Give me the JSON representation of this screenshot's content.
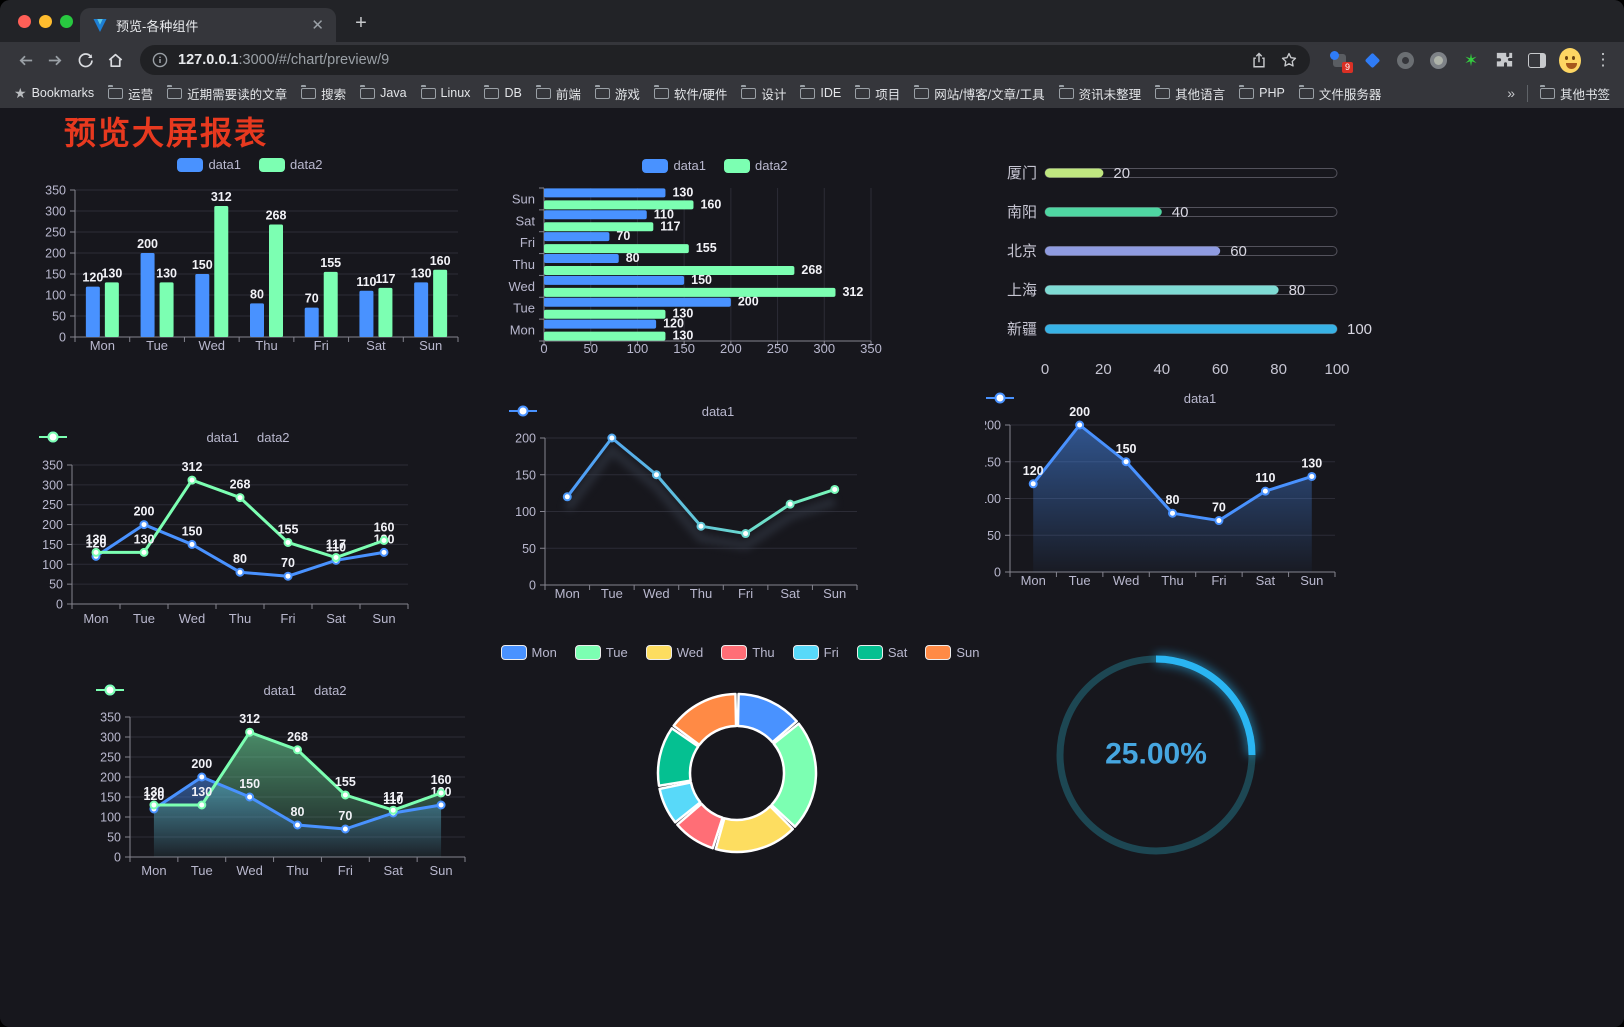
{
  "browser": {
    "tab_title": "预览-各种组件",
    "url_host": "127.0.0.1",
    "url_path": ":3000/#/chart/preview/9",
    "new_tab_label": "+",
    "bookmarks_label": "Bookmarks",
    "bookmark_folders": [
      "运营",
      "近期需要读的文章",
      "搜索",
      "Java",
      "Linux",
      "DB",
      "前端",
      "游戏",
      "软件/硬件",
      "设计",
      "IDE",
      "项目",
      "网站/博客/文章/工具",
      "资讯未整理",
      "其他语言",
      "PHP",
      "文件服务器"
    ],
    "bookmarks_overflow": "»",
    "other_bookmarks": "其他书签",
    "extension_badge": "9"
  },
  "page": {
    "title": "预览大屏报表",
    "title_color": "#e8391f"
  },
  "chart_data": [
    {
      "type": "bar",
      "title": "",
      "categories": [
        "Mon",
        "Tue",
        "Wed",
        "Thu",
        "Fri",
        "Sat",
        "Sun"
      ],
      "series": [
        {
          "name": "data1",
          "color": "#4992ff",
          "values": [
            120,
            200,
            150,
            80,
            70,
            110,
            130
          ]
        },
        {
          "name": "data2",
          "color": "#7cffb2",
          "values": [
            130,
            130,
            312,
            268,
            155,
            117,
            160
          ]
        }
      ],
      "ylim": [
        0,
        350
      ],
      "ystep": 50,
      "show_labels": true,
      "legend_position": "top",
      "grid": true
    },
    {
      "type": "hbar",
      "categories": [
        "Mon",
        "Tue",
        "Wed",
        "Thu",
        "Fri",
        "Sat",
        "Sun"
      ],
      "series": [
        {
          "name": "data1",
          "color": "#4992ff",
          "values": [
            120,
            200,
            150,
            80,
            70,
            110,
            130
          ]
        },
        {
          "name": "data2",
          "color": "#7cffb2",
          "values": [
            130,
            130,
            312,
            268,
            155,
            117,
            160
          ]
        }
      ],
      "xlim": [
        0,
        350
      ],
      "xstep": 50,
      "show_labels": true,
      "legend_position": "top",
      "grid": true
    },
    {
      "type": "progress-bars",
      "max": 100,
      "xticks": [
        0,
        20,
        40,
        60,
        80,
        100
      ],
      "items": [
        {
          "label": "厦门",
          "value": 20,
          "color": "#c0e780"
        },
        {
          "label": "南阳",
          "value": 40,
          "color": "#4fd6a2"
        },
        {
          "label": "北京",
          "value": 60,
          "color": "#8f9be0"
        },
        {
          "label": "上海",
          "value": 80,
          "color": "#7fdbd4"
        },
        {
          "label": "新疆",
          "value": 100,
          "color": "#38b2e5"
        }
      ]
    },
    {
      "type": "line",
      "categories": [
        "Mon",
        "Tue",
        "Wed",
        "Thu",
        "Fri",
        "Sat",
        "Sun"
      ],
      "series": [
        {
          "name": "data1",
          "color": "#4992ff",
          "values": [
            120,
            200,
            150,
            80,
            70,
            110,
            130
          ]
        },
        {
          "name": "data2",
          "color": "#7cffb2",
          "values": [
            130,
            130,
            312,
            268,
            155,
            117,
            160
          ]
        }
      ],
      "ylim": [
        0,
        350
      ],
      "ystep": 50,
      "show_labels": true,
      "legend_position": "top",
      "grid": true
    },
    {
      "type": "line",
      "categories": [
        "Mon",
        "Tue",
        "Wed",
        "Thu",
        "Fri",
        "Sat",
        "Sun"
      ],
      "series": [
        {
          "name": "data1",
          "color": "#4992ff",
          "gradient": [
            "#4992ff",
            "#7cffb2"
          ],
          "values": [
            120,
            200,
            150,
            80,
            70,
            110,
            130
          ]
        }
      ],
      "ylim": [
        0,
        200
      ],
      "ystep": 50,
      "show_labels": false,
      "shadow": true,
      "legend_position": "top",
      "grid": true
    },
    {
      "type": "line",
      "categories": [
        "Mon",
        "Tue",
        "Wed",
        "Thu",
        "Fri",
        "Sat",
        "Sun"
      ],
      "series": [
        {
          "name": "data1",
          "color": "#4992ff",
          "values": [
            120,
            200,
            150,
            80,
            70,
            110,
            130
          ],
          "area": true
        }
      ],
      "ylim": [
        0,
        200
      ],
      "ystep": 50,
      "show_labels": true,
      "legend_position": "top",
      "grid": true
    },
    {
      "type": "line",
      "categories": [
        "Mon",
        "Tue",
        "Wed",
        "Thu",
        "Fri",
        "Sat",
        "Sun"
      ],
      "series": [
        {
          "name": "data1",
          "color": "#4992ff",
          "values": [
            120,
            200,
            150,
            80,
            70,
            110,
            130
          ],
          "area": true
        },
        {
          "name": "data2",
          "color": "#7cffb2",
          "values": [
            130,
            130,
            312,
            268,
            155,
            117,
            160
          ],
          "area": true
        }
      ],
      "ylim": [
        0,
        350
      ],
      "ystep": 50,
      "show_labels": true,
      "legend_position": "top",
      "grid": true
    },
    {
      "type": "donut",
      "legend_position": "top",
      "border_color": "#ffffff",
      "items": [
        {
          "label": "Mon",
          "value": 120,
          "color": "#4992ff"
        },
        {
          "label": "Tue",
          "value": 200,
          "color": "#7cffb2"
        },
        {
          "label": "Wed",
          "value": 150,
          "color": "#fddd60"
        },
        {
          "label": "Thu",
          "value": 80,
          "color": "#ff6e76"
        },
        {
          "label": "Fri",
          "value": 70,
          "color": "#58d9f9"
        },
        {
          "label": "Sat",
          "value": 110,
          "color": "#05c091"
        },
        {
          "label": "Sun",
          "value": 130,
          "color": "#ff8a45"
        }
      ]
    },
    {
      "type": "gauge",
      "label": "25.00%",
      "percent": 25,
      "color": "#2ab5f2",
      "track_color": "#1d4753",
      "text_color": "#46a6e0"
    }
  ]
}
